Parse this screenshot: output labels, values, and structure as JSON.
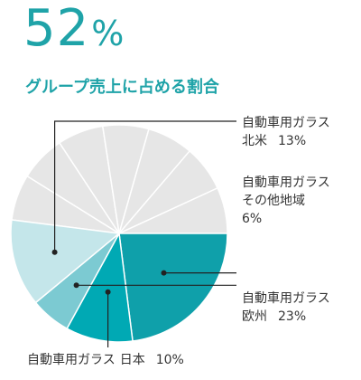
{
  "header": {
    "headline_value": "52",
    "headline_unit": "%",
    "subtitle": "グループ売上に占める割合"
  },
  "colors": {
    "accent": "#1fa3a8",
    "japan": "#00a9b4",
    "europe": "#0fa0aa",
    "other_regions": "#7ccad2",
    "north_america": "#c4e6ea",
    "rest": "#e6e6e6",
    "text": "#333333"
  },
  "chart_data": {
    "type": "pie",
    "title": "グループ売上に占める割合",
    "series": [
      {
        "category": "自動車用ガラス",
        "region": "日本",
        "value": 10,
        "pct": "10%",
        "color": "#00a9b4"
      },
      {
        "category": "自動車用ガラス",
        "region": "欧州",
        "value": 23,
        "pct": "23%",
        "color": "#0fa0aa"
      },
      {
        "category": "自動車用ガラス",
        "region": "その他地域",
        "value": 6,
        "pct": "6%",
        "color": "#7ccad2"
      },
      {
        "category": "自動車用ガラス",
        "region": "北米",
        "value": 13,
        "pct": "13%",
        "color": "#c4e6ea"
      }
    ],
    "remainder_value": 48
  }
}
